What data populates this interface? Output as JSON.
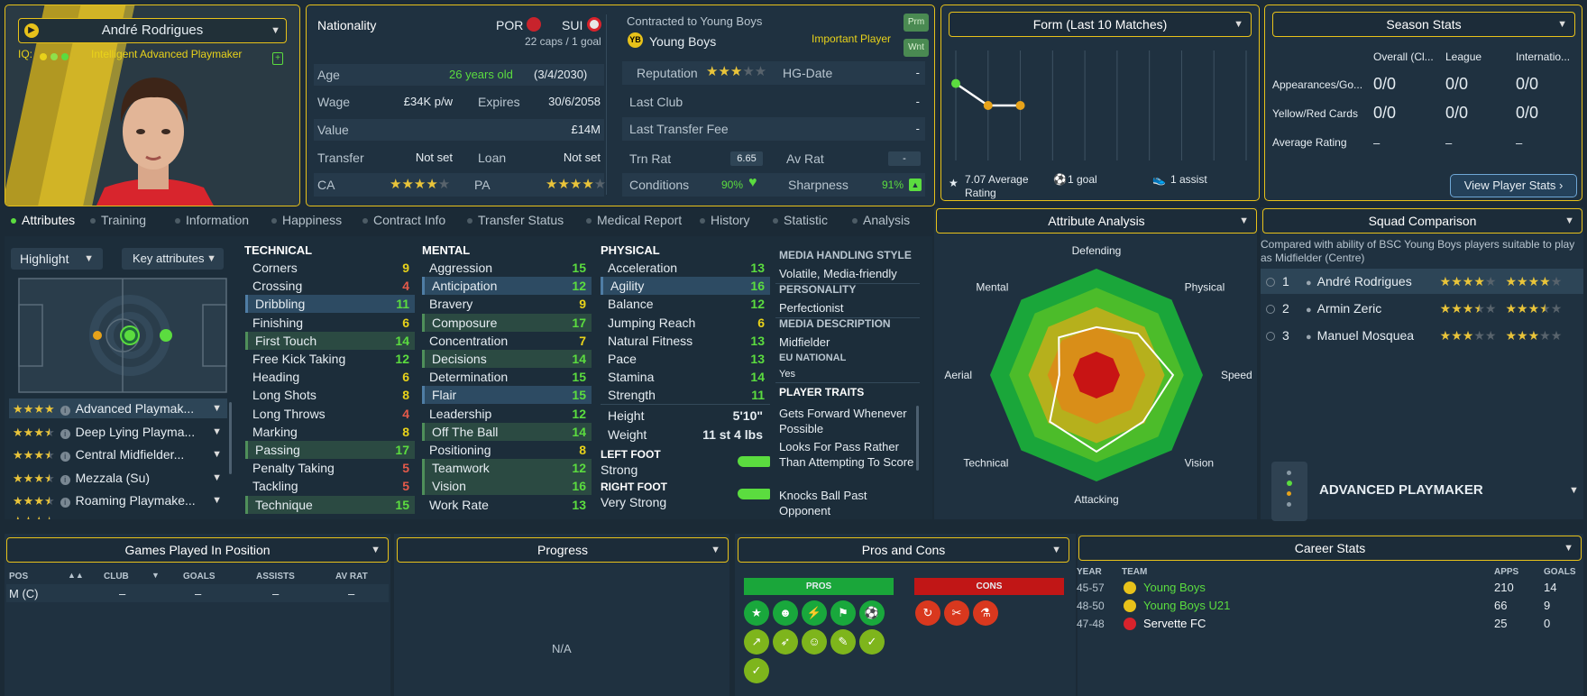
{
  "player": {
    "name": "André Rodrigues",
    "iq_label": "IQ:",
    "role_desc": "Intelligent Advanced Playmaker"
  },
  "info": {
    "nationality_label": "Nationality",
    "nat1": "POR",
    "nat2": "SUI",
    "caps": "22 caps / 1 goal",
    "age_label": "Age",
    "age": "26 years old",
    "dob": "(3/4/2030)",
    "wage_label": "Wage",
    "wage": "£34K p/w",
    "expires_label": "Expires",
    "expires": "30/6/2058",
    "value_label": "Value",
    "value": "£14M",
    "transfer_label": "Transfer",
    "transfer": "Not set",
    "loan_label": "Loan",
    "loan": "Not set",
    "ca_label": "CA",
    "pa_label": "PA",
    "contracted_label": "Contracted to Young Boys",
    "club": "Young Boys",
    "status": "Important Player",
    "prm": "Prm",
    "wnt": "Wnt",
    "reputation_label": "Reputation",
    "hg_label": "HG-Date",
    "hg": "-",
    "last_club_label": "Last Club",
    "last_club": "-",
    "ltf_label": "Last Transfer Fee",
    "ltf": "-",
    "trn_label": "Trn Rat",
    "trn": "6.65",
    "av_label": "Av Rat",
    "av": "-",
    "cond_label": "Conditions",
    "cond": "90%",
    "sharp_label": "Sharpness",
    "sharp": "91%"
  },
  "form": {
    "title": "Form (Last 10 Matches)",
    "avg": "7.07 Average Rating",
    "goals": "1 goal",
    "assists": "1 assist",
    "ratings": [
      7.4,
      7.0,
      7.0
    ]
  },
  "season": {
    "title": "Season Stats",
    "cols": [
      "Overall (Cl...",
      "League",
      "Internatio..."
    ],
    "rows": [
      {
        "label": "Appearances/Go...",
        "vals": [
          "0/0",
          "0/0",
          "0/0"
        ]
      },
      {
        "label": "Yellow/Red Cards",
        "vals": [
          "0/0",
          "0/0",
          "0/0"
        ]
      },
      {
        "label": "Average Rating",
        "vals": [
          "–",
          "–",
          "–"
        ]
      }
    ],
    "button": "View Player Stats"
  },
  "tabs": [
    "Attributes",
    "Training",
    "Information",
    "Happiness",
    "Contract Info",
    "Transfer Status",
    "Medical Report",
    "History",
    "Statistic",
    "Analysis"
  ],
  "left": {
    "highlight": "Highlight",
    "key": "Key attributes",
    "roles": [
      {
        "name": "Advanced Playmak...",
        "stars": 4
      },
      {
        "name": "Deep Lying Playma...",
        "stars": 3.5
      },
      {
        "name": "Central Midfielder...",
        "stars": 3.5
      },
      {
        "name": "Mezzala (Su)",
        "stars": 3.5
      },
      {
        "name": "Roaming Playmake...",
        "stars": 3.5
      }
    ]
  },
  "technical": {
    "title": "TECHNICAL",
    "items": [
      {
        "n": "Corners",
        "v": "9",
        "c": "#e8d21a",
        "s": ""
      },
      {
        "n": "Crossing",
        "v": "4",
        "c": "#e55a4a",
        "s": ""
      },
      {
        "n": "Dribbling",
        "v": "11",
        "c": "#5bdc3f",
        "s": "h"
      },
      {
        "n": "Finishing",
        "v": "6",
        "c": "#e8d21a",
        "s": ""
      },
      {
        "n": "First Touch",
        "v": "14",
        "c": "#5bdc3f",
        "s": "k"
      },
      {
        "n": "Free Kick Taking",
        "v": "12",
        "c": "#5bdc3f",
        "s": ""
      },
      {
        "n": "Heading",
        "v": "6",
        "c": "#e8d21a",
        "s": ""
      },
      {
        "n": "Long Shots",
        "v": "8",
        "c": "#e8d21a",
        "s": ""
      },
      {
        "n": "Long Throws",
        "v": "4",
        "c": "#e55a4a",
        "s": ""
      },
      {
        "n": "Marking",
        "v": "8",
        "c": "#e8d21a",
        "s": ""
      },
      {
        "n": "Passing",
        "v": "17",
        "c": "#5bdc3f",
        "s": "k"
      },
      {
        "n": "Penalty Taking",
        "v": "5",
        "c": "#e55a4a",
        "s": ""
      },
      {
        "n": "Tackling",
        "v": "5",
        "c": "#e55a4a",
        "s": ""
      },
      {
        "n": "Technique",
        "v": "15",
        "c": "#5bdc3f",
        "s": "k"
      }
    ]
  },
  "mental": {
    "title": "MENTAL",
    "items": [
      {
        "n": "Aggression",
        "v": "15",
        "c": "#5bdc3f",
        "s": ""
      },
      {
        "n": "Anticipation",
        "v": "12",
        "c": "#5bdc3f",
        "s": "h"
      },
      {
        "n": "Bravery",
        "v": "9",
        "c": "#e8d21a",
        "s": ""
      },
      {
        "n": "Composure",
        "v": "17",
        "c": "#5bdc3f",
        "s": "k"
      },
      {
        "n": "Concentration",
        "v": "7",
        "c": "#e8d21a",
        "s": ""
      },
      {
        "n": "Decisions",
        "v": "14",
        "c": "#5bdc3f",
        "s": "k"
      },
      {
        "n": "Determination",
        "v": "15",
        "c": "#5bdc3f",
        "s": ""
      },
      {
        "n": "Flair",
        "v": "15",
        "c": "#5bdc3f",
        "s": "h"
      },
      {
        "n": "Leadership",
        "v": "12",
        "c": "#5bdc3f",
        "s": ""
      },
      {
        "n": "Off The Ball",
        "v": "14",
        "c": "#5bdc3f",
        "s": "k"
      },
      {
        "n": "Positioning",
        "v": "8",
        "c": "#e8d21a",
        "s": ""
      },
      {
        "n": "Teamwork",
        "v": "12",
        "c": "#5bdc3f",
        "s": "k"
      },
      {
        "n": "Vision",
        "v": "16",
        "c": "#5bdc3f",
        "s": "k"
      },
      {
        "n": "Work Rate",
        "v": "13",
        "c": "#5bdc3f",
        "s": ""
      }
    ]
  },
  "physical": {
    "title": "PHYSICAL",
    "items": [
      {
        "n": "Acceleration",
        "v": "13",
        "c": "#5bdc3f",
        "s": ""
      },
      {
        "n": "Agility",
        "v": "16",
        "c": "#5bdc3f",
        "s": "h"
      },
      {
        "n": "Balance",
        "v": "12",
        "c": "#5bdc3f",
        "s": ""
      },
      {
        "n": "Jumping Reach",
        "v": "6",
        "c": "#e8d21a",
        "s": ""
      },
      {
        "n": "Natural Fitness",
        "v": "13",
        "c": "#5bdc3f",
        "s": ""
      },
      {
        "n": "Pace",
        "v": "13",
        "c": "#5bdc3f",
        "s": ""
      },
      {
        "n": "Stamina",
        "v": "14",
        "c": "#5bdc3f",
        "s": ""
      },
      {
        "n": "Strength",
        "v": "11",
        "c": "#5bdc3f",
        "s": ""
      }
    ],
    "height_label": "Height",
    "height": "5'10\"",
    "weight_label": "Weight",
    "weight": "11 st 4 lbs",
    "lf_label": "LEFT FOOT",
    "lf": "Strong",
    "rf_label": "RIGHT FOOT",
    "rf": "Very Strong"
  },
  "media": {
    "mhs_label": "MEDIA HANDLING STYLE",
    "mhs": "Volatile, Media-friendly",
    "pers_label": "PERSONALITY",
    "pers": "Perfectionist",
    "md_label": "MEDIA DESCRIPTION",
    "md": "Midfielder",
    "eu_label": "EU NATIONAL",
    "eu": "Yes",
    "traits_label": "PLAYER TRAITS",
    "traits": [
      "Gets Forward Whenever Possible",
      "Looks For Pass Rather Than Attempting To Score",
      "Knocks Ball Past Opponent"
    ]
  },
  "analysis": {
    "title": "Attribute Analysis",
    "labels": [
      "Defending",
      "Physical",
      "Speed",
      "Vision",
      "Attacking",
      "Technical",
      "Aerial",
      "Mental"
    ],
    "values": [
      0.45,
      0.55,
      0.72,
      0.62,
      0.72,
      0.62,
      0.35,
      0.5
    ]
  },
  "squad": {
    "title": "Squad Comparison",
    "desc": "Compared with ability of BSC Young Boys players suitable to play as Midfielder (Centre)",
    "rows": [
      {
        "rank": "1",
        "name": "André Rodrigues",
        "ca": 4,
        "pa": 4
      },
      {
        "rank": "2",
        "name": "Armin Zeric",
        "ca": 3.5,
        "pa": 3.5
      },
      {
        "rank": "3",
        "name": "Manuel Mosquea",
        "ca": 3,
        "pa": 3
      }
    ],
    "role": "ADVANCED PLAYMAKER"
  },
  "games": {
    "title": "Games Played In Position",
    "cols": [
      "POS",
      "CLUB",
      "GOALS",
      "ASSISTS",
      "AV RAT"
    ],
    "row": [
      "M (C)",
      "–",
      "–",
      "–",
      "–"
    ]
  },
  "progress": {
    "title": "Progress",
    "na": "N/A"
  },
  "proscons": {
    "title": "Pros and Cons",
    "pros": "PROS",
    "cons": "CONS"
  },
  "career": {
    "title": "Career Stats",
    "cols": [
      "YEAR",
      "TEAM",
      "APPS",
      "GOALS"
    ],
    "rows": [
      {
        "y": "45-57",
        "t": "Young Boys",
        "a": "210",
        "g": "14",
        "c": "#5bdc3f"
      },
      {
        "y": "48-50",
        "t": "Young Boys U21",
        "a": "66",
        "g": "9",
        "c": "#5bdc3f"
      },
      {
        "y": "47-48",
        "t": "Servette FC",
        "a": "25",
        "g": "0",
        "c": "#ffffff"
      }
    ]
  }
}
